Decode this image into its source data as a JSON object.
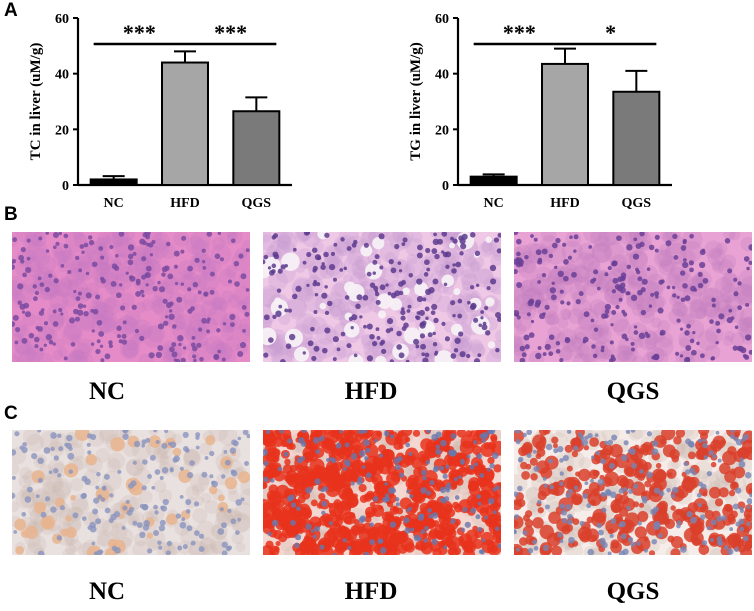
{
  "panels": {
    "a": "A",
    "b": "B",
    "c": "C"
  },
  "chart_data": [
    {
      "type": "bar",
      "categories": [
        "NC",
        "HFD",
        "QGS"
      ],
      "values": [
        2.0,
        44.0,
        26.5
      ],
      "errors": [
        1.2,
        4.0,
        5.0
      ],
      "ylabel": "TC in liver (uM/g)",
      "ylim": [
        0,
        60
      ],
      "yticks": [
        0,
        20,
        40,
        60
      ],
      "colors": [
        "#000000",
        "#a6a6a6",
        "#7a7a7a"
      ],
      "significance": [
        {
          "from": "NC",
          "to": "HFD",
          "label": "***"
        },
        {
          "from": "HFD",
          "to": "QGS",
          "label": "***"
        }
      ]
    },
    {
      "type": "bar",
      "categories": [
        "NC",
        "HFD",
        "QGS"
      ],
      "values": [
        3.0,
        43.5,
        33.5
      ],
      "errors": [
        0.8,
        5.5,
        7.5
      ],
      "ylabel": "TG in liver (uM/g)",
      "ylim": [
        0,
        60
      ],
      "yticks": [
        0,
        20,
        40,
        60
      ],
      "colors": [
        "#000000",
        "#a6a6a6",
        "#7a7a7a"
      ],
      "significance": [
        {
          "from": "NC",
          "to": "HFD",
          "label": "***"
        },
        {
          "from": "HFD",
          "to": "QGS",
          "label": "*"
        }
      ]
    }
  ],
  "he_images": [
    {
      "label": "NC",
      "base": "#e58bc8",
      "cell": "#c47ac2",
      "nucleus": "#7a4aa0",
      "vacuole": false
    },
    {
      "label": "HFD",
      "base": "#efc8e6",
      "cell": "#c79bcf",
      "nucleus": "#5d3b8e",
      "vacuole": true
    },
    {
      "label": "QGS",
      "base": "#e8a3d4",
      "cell": "#c27fbf",
      "nucleus": "#6a3f96",
      "vacuole": false
    }
  ],
  "oro_images": [
    {
      "label": "NC",
      "base": "#e9e1df",
      "lipid": "#e7b48e",
      "nucleus": "#8a93be",
      "lipid_fraction": 0.05
    },
    {
      "label": "HFD",
      "base": "#f4d7d0",
      "lipid": "#e8321c",
      "nucleus": "#6877ac",
      "lipid_fraction": 0.75
    },
    {
      "label": "QGS",
      "base": "#f6ece9",
      "lipid": "#d9402a",
      "nucleus": "#7784b4",
      "lipid_fraction": 0.35
    }
  ]
}
